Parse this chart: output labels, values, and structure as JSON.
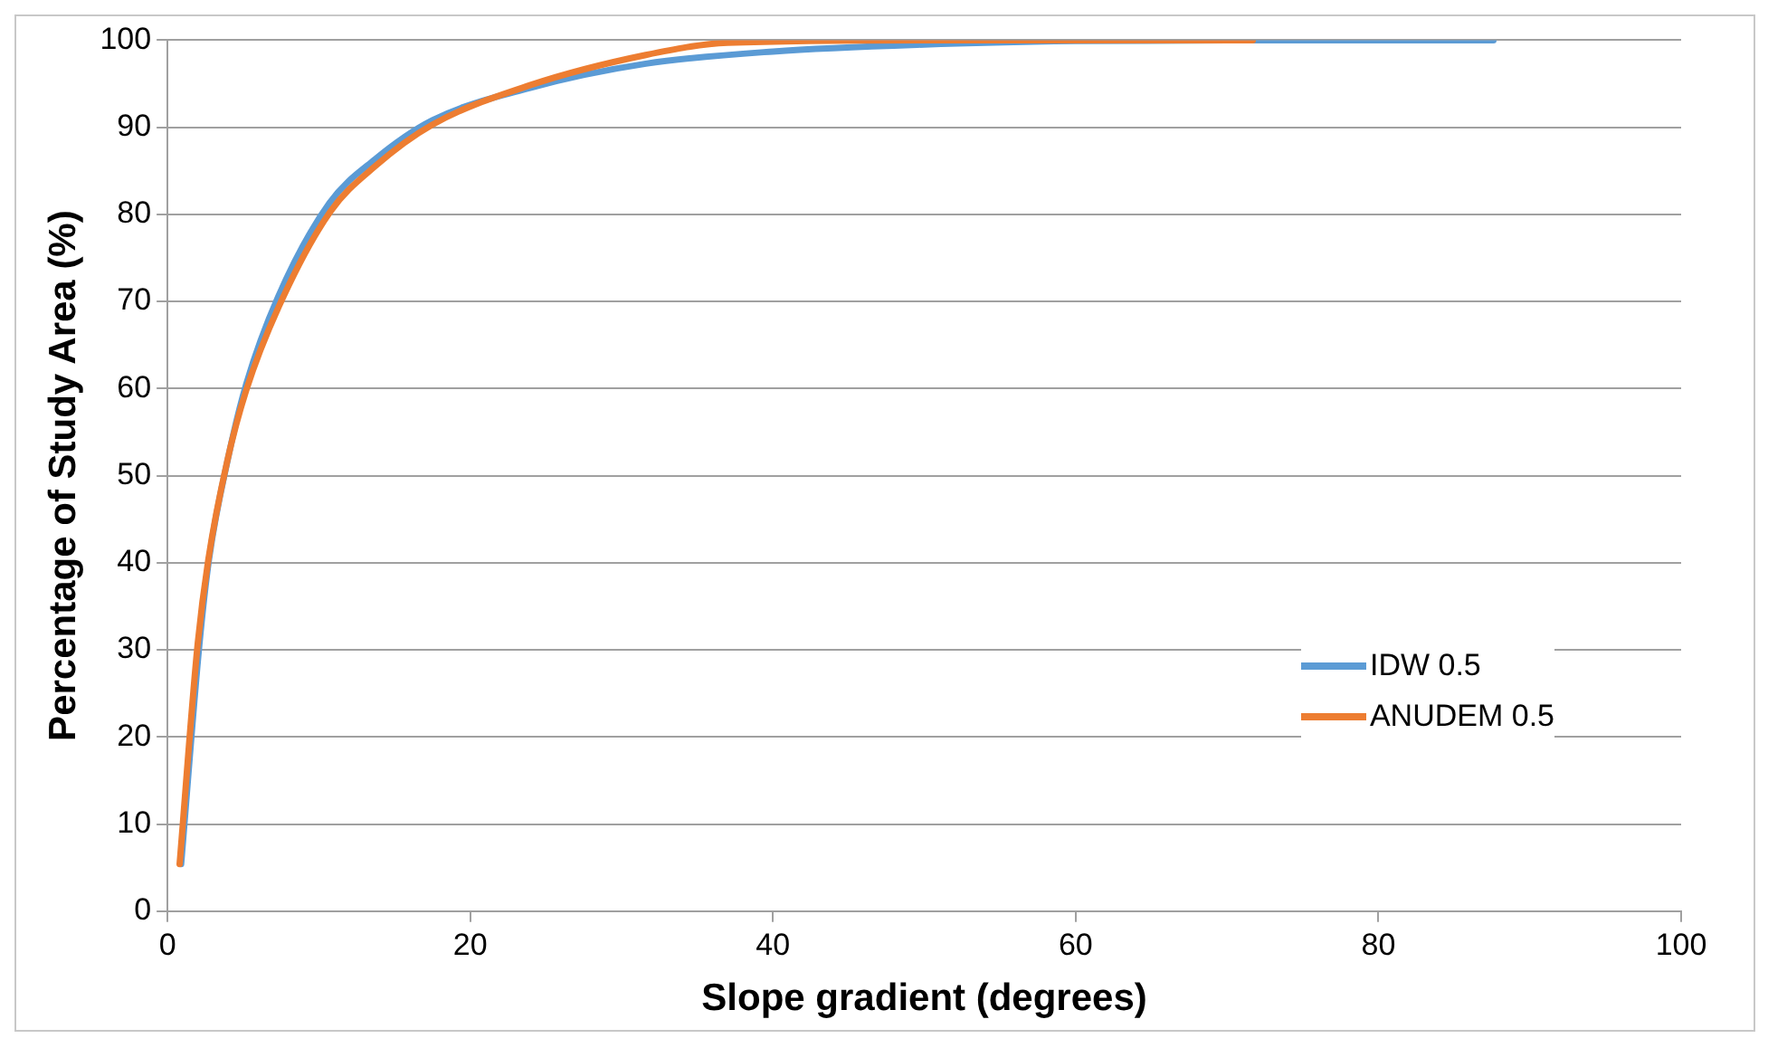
{
  "chart_data": {
    "type": "line",
    "xlabel": "Slope gradient (degrees)",
    "ylabel": "Percentage of Study Area (%)",
    "xlim": [
      0,
      100
    ],
    "xticks": [
      0,
      20,
      40,
      60,
      80,
      100
    ],
    "ylim": [
      0,
      100
    ],
    "yticks": [
      0,
      10,
      20,
      30,
      40,
      50,
      60,
      70,
      80,
      90,
      100
    ],
    "grid": "y",
    "legend": "bottom right",
    "marker": "none",
    "line_style": "solid",
    "series": [
      {
        "name": "IDW 0.5",
        "color": "#5b9bd5",
        "x": [
          0.9,
          2.1,
          2.75,
          4.0,
          5.2,
          7.3,
          10.7,
          13.7,
          17.5,
          23.9,
          31.6,
          40,
          50,
          60,
          70,
          87.6
        ],
        "values": [
          5.4,
          30.5,
          40.5,
          52,
          60.5,
          70.5,
          81.3,
          86.3,
          90.8,
          94.5,
          97.3,
          98.7,
          99.5,
          99.9,
          100,
          100
        ]
      },
      {
        "name": "ANUDEM 0.5",
        "color": "#ed7d31",
        "x": [
          0.8,
          2.0,
          2.7,
          3.95,
          5.2,
          7.35,
          10.75,
          13.7,
          17.5,
          23.9,
          31.6,
          37,
          50,
          60,
          71.7
        ],
        "values": [
          5.4,
          30.8,
          40.4,
          51.7,
          59.8,
          69.4,
          80.3,
          85.5,
          90.3,
          94.8,
          98.3,
          99.7,
          100,
          100,
          100
        ]
      }
    ]
  }
}
